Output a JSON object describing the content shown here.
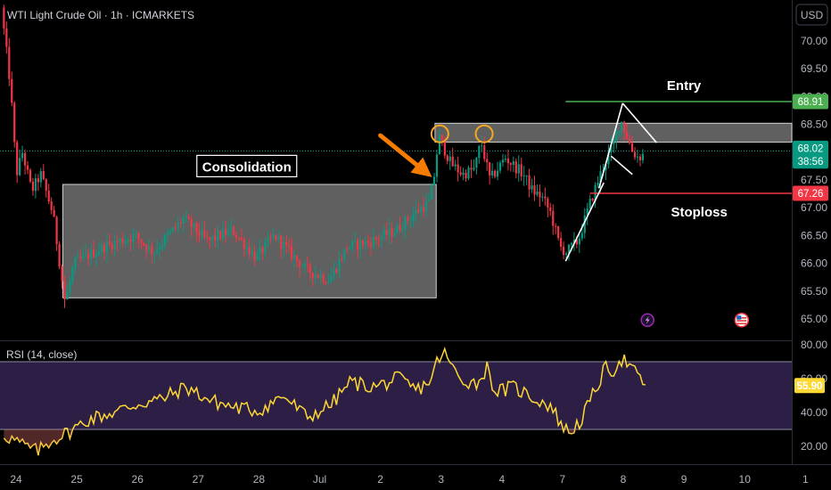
{
  "chart_data": [
    {
      "type": "candlestick",
      "title": "WTI Light Crude Oil · 1h · ICMARKETS",
      "currency_button": "USD",
      "y_range": [
        64.85,
        70.4
      ],
      "y_ticks": [
        "65.00",
        "65.50",
        "66.00",
        "66.50",
        "67.00",
        "67.50",
        "68.00",
        "68.50",
        "69.00",
        "69.50",
        "70.00"
      ],
      "x_labels": [
        {
          "label": "24",
          "day": 0
        },
        {
          "label": "25",
          "day": 1
        },
        {
          "label": "26",
          "day": 2
        },
        {
          "label": "27",
          "day": 3
        },
        {
          "label": "28",
          "day": 4
        },
        {
          "label": "Jul",
          "day": 5
        },
        {
          "label": "2",
          "day": 6
        },
        {
          "label": "3",
          "day": 7
        },
        {
          "label": "4",
          "day": 8
        },
        {
          "label": "7",
          "day": 9
        },
        {
          "label": "8",
          "day": 10
        },
        {
          "label": "9",
          "day": 11
        },
        {
          "label": "10",
          "day": 12
        },
        {
          "label": "1",
          "day": 13
        }
      ],
      "x_range_days": [
        -0.2,
        13.0
      ],
      "price_guide": [
        {
          "day": -0.2,
          "price": 70.6
        },
        {
          "day": -0.05,
          "price": 69.2
        },
        {
          "day": 0.05,
          "price": 67.6
        },
        {
          "day": 0.15,
          "price": 68.0
        },
        {
          "day": 0.3,
          "price": 67.3
        },
        {
          "day": 0.45,
          "price": 67.6
        },
        {
          "day": 0.65,
          "price": 66.9
        },
        {
          "day": 0.85,
          "price": 65.3
        },
        {
          "day": 1.0,
          "price": 66.0
        },
        {
          "day": 1.5,
          "price": 66.3
        },
        {
          "day": 2.0,
          "price": 66.5
        },
        {
          "day": 2.3,
          "price": 66.2
        },
        {
          "day": 2.8,
          "price": 66.8
        },
        {
          "day": 3.2,
          "price": 66.4
        },
        {
          "day": 3.6,
          "price": 66.6
        },
        {
          "day": 4.0,
          "price": 66.1
        },
        {
          "day": 4.3,
          "price": 66.5
        },
        {
          "day": 4.8,
          "price": 65.9
        },
        {
          "day": 5.2,
          "price": 65.7
        },
        {
          "day": 5.5,
          "price": 66.3
        },
        {
          "day": 5.9,
          "price": 66.4
        },
        {
          "day": 6.3,
          "price": 66.6
        },
        {
          "day": 6.6,
          "price": 66.9
        },
        {
          "day": 6.85,
          "price": 67.1
        },
        {
          "day": 6.95,
          "price": 67.7
        },
        {
          "day": 7.0,
          "price": 68.3
        },
        {
          "day": 7.2,
          "price": 67.8
        },
        {
          "day": 7.4,
          "price": 67.6
        },
        {
          "day": 7.6,
          "price": 67.7
        },
        {
          "day": 7.7,
          "price": 68.2
        },
        {
          "day": 7.85,
          "price": 67.5
        },
        {
          "day": 8.1,
          "price": 67.9
        },
        {
          "day": 8.4,
          "price": 67.6
        },
        {
          "day": 8.55,
          "price": 67.3
        },
        {
          "day": 8.7,
          "price": 67.2
        },
        {
          "day": 8.85,
          "price": 66.9
        },
        {
          "day": 9.0,
          "price": 66.3
        },
        {
          "day": 9.1,
          "price": 66.2
        },
        {
          "day": 9.3,
          "price": 66.4
        },
        {
          "day": 9.5,
          "price": 67.1
        },
        {
          "day": 9.7,
          "price": 67.7
        },
        {
          "day": 9.9,
          "price": 68.2
        },
        {
          "day": 10.0,
          "price": 68.6
        },
        {
          "day": 10.1,
          "price": 68.3
        },
        {
          "day": 10.2,
          "price": 68.0
        },
        {
          "day": 10.3,
          "price": 67.9
        },
        {
          "day": 10.35,
          "price": 67.95
        }
      ],
      "boxes": [
        {
          "day_start": 0.77,
          "day_end": 6.92,
          "price_top": 67.42,
          "price_bottom": 65.38
        },
        {
          "day_start": 6.9,
          "day_end": 13.0,
          "price_top": 68.52,
          "price_bottom": 68.18
        }
      ],
      "annotations": [
        {
          "text": "Consolidation",
          "day": 3.8,
          "price": 67.75
        },
        {
          "text": "Entry",
          "day": 11.0,
          "price": 69.2
        },
        {
          "text": "Stoploss",
          "day": 11.25,
          "price": 66.92
        }
      ],
      "level_lines": [
        {
          "name": "entry",
          "price": 68.91,
          "day_start": 9.05,
          "color": "#4caf50"
        },
        {
          "name": "stoploss",
          "price": 67.26,
          "day_start": 9.45,
          "color": "#f23645"
        }
      ],
      "current_price_line": 68.02,
      "price_tags": [
        {
          "text": "68.91",
          "price": 68.91,
          "color": "#4caf50"
        },
        {
          "text": "68.02",
          "price": 68.07,
          "color": "#089981"
        },
        {
          "text": "38:56",
          "price": 67.84,
          "color": "#089981"
        },
        {
          "text": "67.26",
          "price": 67.26,
          "color": "#f23645"
        }
      ],
      "highlight_circles": [
        {
          "day": 6.98,
          "price": 68.33
        },
        {
          "day": 7.71,
          "price": 68.33
        }
      ],
      "trend_lines": [
        {
          "from": {
            "day": 9.05,
            "price": 66.04
          },
          "to": {
            "day": 9.68,
            "price": 67.45
          }
        },
        {
          "from": {
            "day": 9.6,
            "price": 67.35
          },
          "to": {
            "day": 9.99,
            "price": 68.88
          }
        },
        {
          "from": {
            "day": 9.99,
            "price": 68.88
          },
          "to": {
            "day": 10.55,
            "price": 68.17
          }
        },
        {
          "from": {
            "day": 9.8,
            "price": 67.93
          },
          "to": {
            "day": 10.15,
            "price": 67.6
          }
        }
      ],
      "arrow": {
        "from": {
          "day": 6.0,
          "price": 68.3
        },
        "to": {
          "day": 6.85,
          "price": 67.55
        },
        "color": "#f57c00"
      },
      "event_icons": [
        {
          "name": "dividend-event-icon",
          "day": 10.4,
          "price": 64.98
        },
        {
          "name": "us-flag-event-icon",
          "day": 11.95,
          "price": 64.98
        }
      ]
    },
    {
      "type": "line",
      "title": "RSI (14, close)",
      "series_color": "#fdd835",
      "y_range": [
        12,
        85
      ],
      "y_ticks": [
        "20.00",
        "40.00",
        "60.00",
        "80.00"
      ],
      "band": [
        30,
        70
      ],
      "current_value_tag": "55.90",
      "current_value": 55.9,
      "values_guide": [
        {
          "day": -0.2,
          "value": 27
        },
        {
          "day": 0.05,
          "value": 22
        },
        {
          "day": 0.35,
          "value": 17
        },
        {
          "day": 0.6,
          "value": 24
        },
        {
          "day": 0.85,
          "value": 28
        },
        {
          "day": 1.2,
          "value": 36
        },
        {
          "day": 1.6,
          "value": 40
        },
        {
          "day": 2.0,
          "value": 45
        },
        {
          "day": 2.4,
          "value": 48
        },
        {
          "day": 2.8,
          "value": 55
        },
        {
          "day": 3.2,
          "value": 47
        },
        {
          "day": 3.6,
          "value": 43
        },
        {
          "day": 4.0,
          "value": 41
        },
        {
          "day": 4.4,
          "value": 50
        },
        {
          "day": 4.8,
          "value": 37
        },
        {
          "day": 5.2,
          "value": 45
        },
        {
          "day": 5.5,
          "value": 58
        },
        {
          "day": 5.9,
          "value": 55
        },
        {
          "day": 6.3,
          "value": 60
        },
        {
          "day": 6.6,
          "value": 53
        },
        {
          "day": 6.85,
          "value": 60
        },
        {
          "day": 6.95,
          "value": 72
        },
        {
          "day": 7.05,
          "value": 75
        },
        {
          "day": 7.3,
          "value": 60
        },
        {
          "day": 7.6,
          "value": 57
        },
        {
          "day": 7.75,
          "value": 67
        },
        {
          "day": 7.9,
          "value": 52
        },
        {
          "day": 8.2,
          "value": 55
        },
        {
          "day": 8.5,
          "value": 49
        },
        {
          "day": 8.8,
          "value": 44
        },
        {
          "day": 9.0,
          "value": 32
        },
        {
          "day": 9.1,
          "value": 28
        },
        {
          "day": 9.3,
          "value": 35
        },
        {
          "day": 9.5,
          "value": 50
        },
        {
          "day": 9.7,
          "value": 66
        },
        {
          "day": 9.85,
          "value": 65
        },
        {
          "day": 9.95,
          "value": 72
        },
        {
          "day": 10.05,
          "value": 70
        },
        {
          "day": 10.15,
          "value": 65
        },
        {
          "day": 10.3,
          "value": 59
        },
        {
          "day": 10.4,
          "value": 56
        }
      ]
    }
  ]
}
